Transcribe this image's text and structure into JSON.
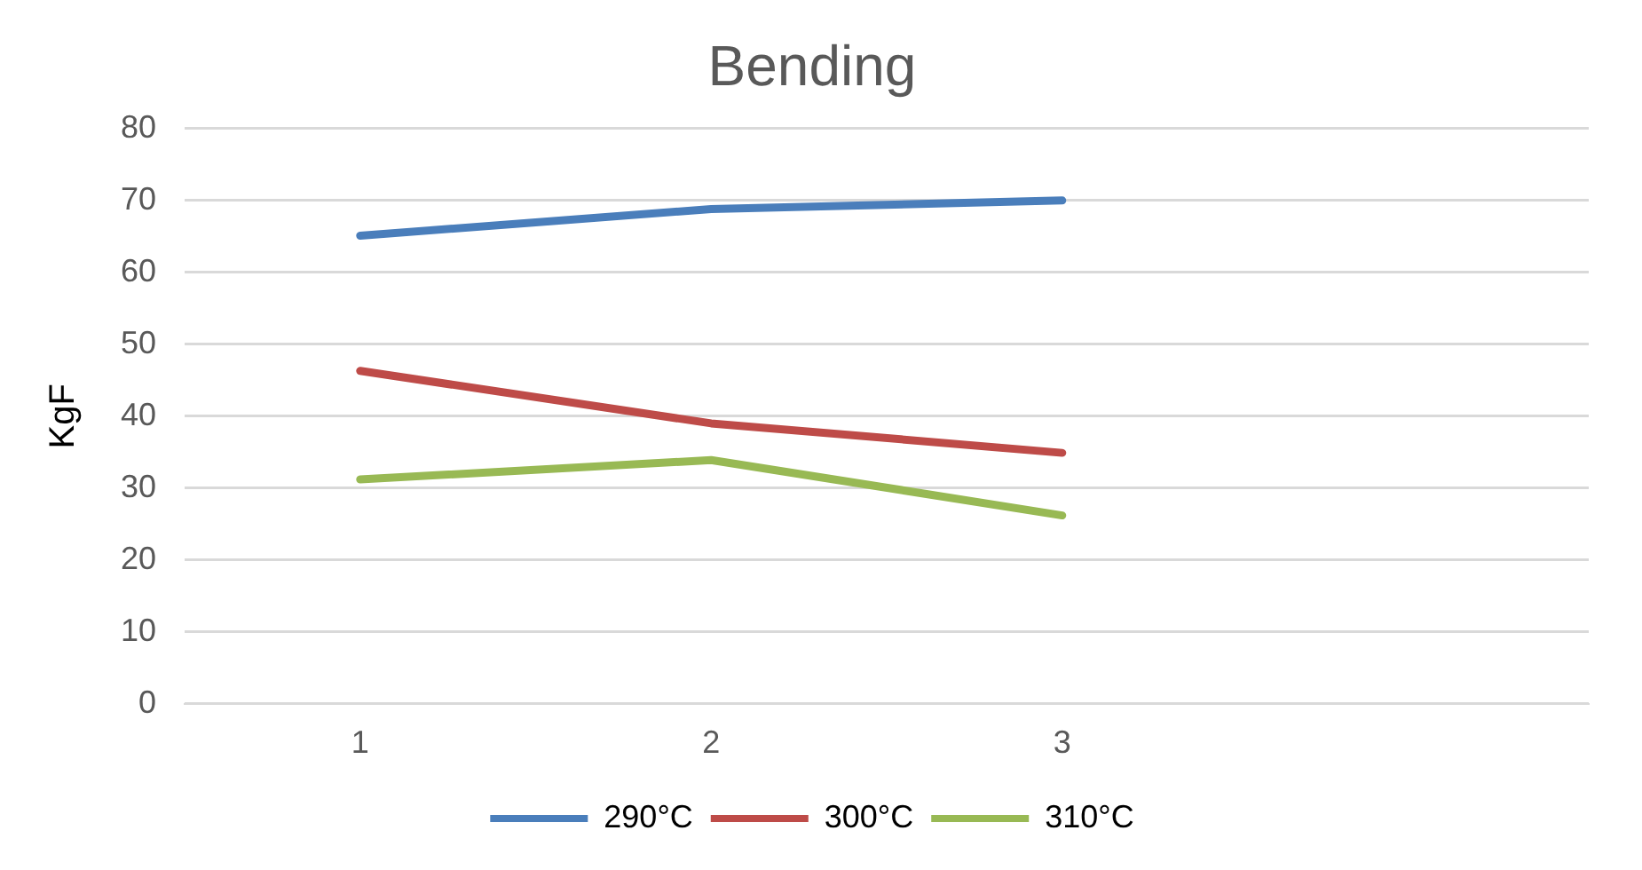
{
  "chart_data": {
    "type": "line",
    "title": "Bending",
    "ylabel": "KgF",
    "categories": [
      "1",
      "2",
      "3",
      null
    ],
    "series": [
      {
        "name": "290°C",
        "color": "#4a7ebb",
        "values": [
          65.1,
          68.8,
          70,
          null
        ]
      },
      {
        "name": "300°C",
        "color": "#be4b48",
        "values": [
          46.3,
          39,
          34.9,
          null
        ]
      },
      {
        "name": "310°C",
        "color": "#98b954",
        "values": [
          31.2,
          33.9,
          26.2,
          null
        ]
      }
    ],
    "ylim": [
      0,
      80
    ],
    "yticks": [
      0,
      10,
      20,
      30,
      40,
      50,
      60,
      70,
      80
    ],
    "grid": "y",
    "legend": "bottom",
    "marker": "none",
    "line_style": "solid"
  }
}
